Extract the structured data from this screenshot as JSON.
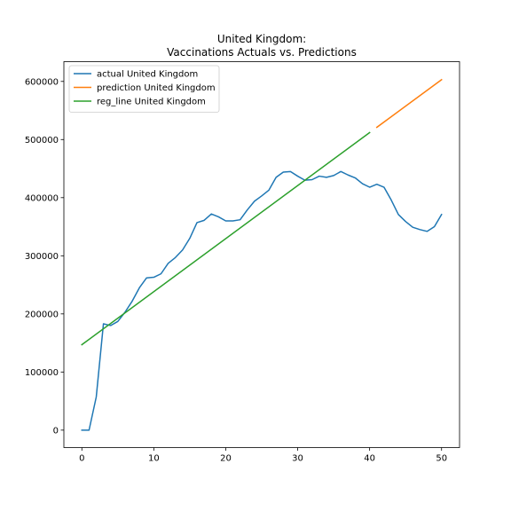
{
  "chart_data": {
    "type": "line",
    "title_line1": "United Kingdom:",
    "title_line2": "Vaccinations Actuals vs. Predictions",
    "xlabel": "",
    "ylabel": "",
    "xlim": [
      -2.5,
      52.5
    ],
    "ylim": [
      -30000,
      634000
    ],
    "x_ticks": [
      0,
      10,
      20,
      30,
      40,
      50
    ],
    "y_ticks": [
      0,
      100000,
      200000,
      300000,
      400000,
      500000,
      600000
    ],
    "grid": false,
    "legend_position": "upper-left",
    "series": [
      {
        "name": "actual United Kingdom",
        "color": "#1f77b4",
        "x": [
          0,
          1,
          2,
          3,
          4,
          5,
          6,
          7,
          8,
          9,
          10,
          11,
          12,
          13,
          14,
          15,
          16,
          17,
          18,
          19,
          20,
          21,
          22,
          23,
          24,
          25,
          26,
          27,
          28,
          29,
          30,
          31,
          32,
          33,
          34,
          35,
          36,
          37,
          38,
          39,
          40,
          41,
          42,
          43,
          44,
          45,
          46,
          47,
          48,
          49,
          50
        ],
        "y": [
          0,
          0,
          57000,
          183000,
          180000,
          187000,
          203000,
          222000,
          245000,
          262000,
          263000,
          269000,
          287000,
          297000,
          310000,
          330000,
          357000,
          361000,
          372000,
          367000,
          360000,
          360000,
          362000,
          379000,
          394000,
          403000,
          413000,
          435000,
          444000,
          445000,
          437000,
          430000,
          431000,
          437000,
          435000,
          438000,
          445000,
          439000,
          434000,
          424000,
          418000,
          423000,
          418000,
          396000,
          371000,
          359000,
          349000,
          345000,
          342000,
          350000,
          371000
        ]
      },
      {
        "name": "prediction United Kingdom",
        "color": "#ff7f0e",
        "x": [
          41,
          50
        ],
        "y": [
          521000,
          603000
        ]
      },
      {
        "name": "reg_line United Kingdom",
        "color": "#2ca02c",
        "x": [
          0,
          40
        ],
        "y": [
          147000,
          512000
        ]
      }
    ]
  }
}
